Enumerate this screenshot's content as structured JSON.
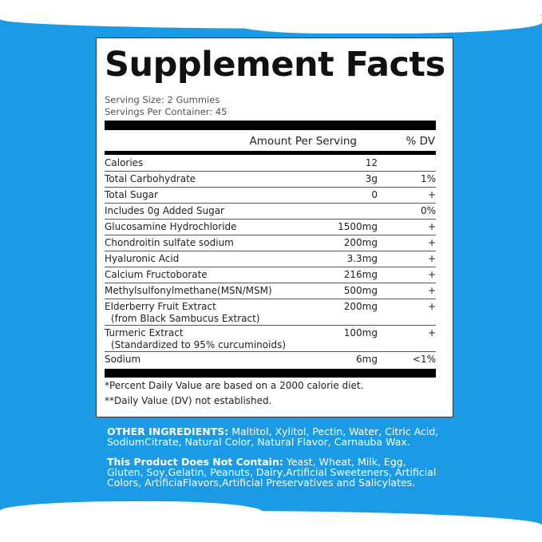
{
  "title": "Supplement Facts",
  "serving_size": "Serving Size: 2 Gummies",
  "servings_per_container": "Servings Per Container: 45",
  "header": {
    "amount": "Amount Per Serving",
    "dv": "% DV"
  },
  "rows": [
    {
      "name": "Calories",
      "amount": "12",
      "dv": ""
    },
    {
      "name": "Total Carbohydrate",
      "amount": "3g",
      "dv": "1%"
    },
    {
      "name": "Total Sugar",
      "amount": "0",
      "dv": "+"
    },
    {
      "name": "Includes 0g Added Sugar",
      "amount": "",
      "dv": "0%"
    },
    {
      "name": "Glucosamine Hydrochloride",
      "amount": "1500mg",
      "dv": "+"
    },
    {
      "name": "Chondroitin sulfate sodium",
      "amount": "200mg",
      "dv": "+"
    },
    {
      "name": "Hyaluronic Acid",
      "amount": "3.3mg",
      "dv": "+"
    },
    {
      "name": "Calcium Fructoborate",
      "amount": "216mg",
      "dv": "+"
    },
    {
      "name": "Methylsulfonylmethane(MSN/MSM)",
      "amount": "500mg",
      "dv": "+"
    },
    {
      "name": "Elderberry Fruit Extract",
      "sub": "(from Black Sambucus Extract)",
      "amount": "200mg",
      "dv": "+"
    },
    {
      "name": "Turmeric Extract",
      "sub": "(Standardized to 95% curcuminoids)",
      "amount": "100mg",
      "dv": "+"
    },
    {
      "name": "Sodium",
      "amount": "6mg",
      "dv": "<1%"
    }
  ],
  "footnotes": [
    "*Percent Daily Value are based on a 2000 calorie diet.",
    "**Daily Value (DV) not established."
  ],
  "other_ingredients": {
    "label": "OTHER INGREDIENTS:",
    "text": " Maltitol, Xylitol, Pectin, Water, Citric Acid, SodiumCitrate, Natural Color, Natural Flavor, Carnauba Wax."
  },
  "does_not_contain": {
    "label": "This Product Does Not Contain:",
    "text": " Yeast, Wheat, Milk, Egg, Gluten, Soy,Gelatin, Peanuts, Dairy,Artificial Sweeteners, Artificial Colors, ArtificiaFlavors,Artificial Preservatives and Salicylates."
  },
  "colors": {
    "background": "#1b9be6",
    "panel": "#ffffff"
  }
}
